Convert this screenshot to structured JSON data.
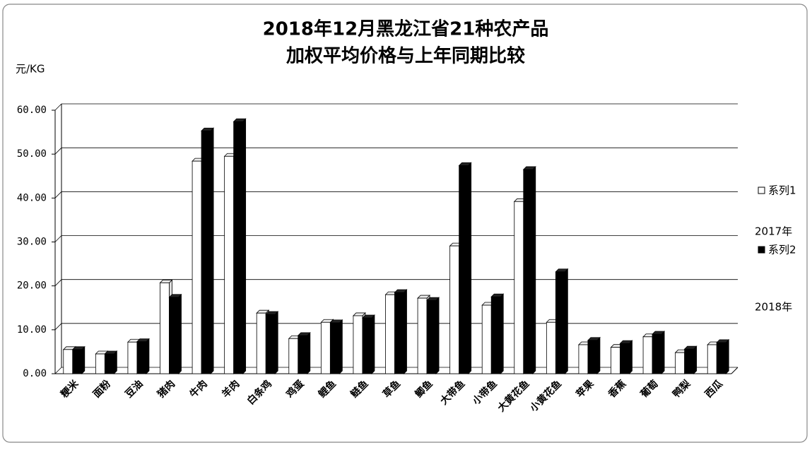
{
  "chart_data": {
    "type": "bar",
    "title": [
      "2018年12月黑龙江省21种农产品",
      "加权平均价格与上年同期比较"
    ],
    "y_label": "元/KG",
    "categories": [
      "粳米",
      "面粉",
      "豆油",
      "猪肉",
      "牛肉",
      "羊肉",
      "白条鸡",
      "鸡蛋",
      "鲤鱼",
      "鲢鱼",
      "草鱼",
      "鲫鱼",
      "大带鱼",
      "小带鱼",
      "大黄花鱼",
      "小黄花鱼",
      "苹果",
      "香蕉",
      "葡萄",
      "鸭梨",
      "西瓜"
    ],
    "series": [
      {
        "name": "系列1",
        "color": "#ffffff",
        "values": [
          5.5,
          4.5,
          7.2,
          20.7,
          48.4,
          49.5,
          13.8,
          8.0,
          11.7,
          13.2,
          18.0,
          17.2,
          29.1,
          15.6,
          39.2,
          11.7,
          6.6,
          6.0,
          8.4,
          4.8,
          6.6
        ]
      },
      {
        "name": "系列2",
        "color": "#000000",
        "values": [
          5.5,
          4.5,
          7.3,
          17.4,
          55.3,
          57.4,
          13.5,
          8.7,
          11.6,
          12.7,
          18.5,
          16.7,
          47.4,
          17.5,
          46.5,
          23.2,
          7.6,
          6.9,
          9.0,
          5.6,
          7.1
        ]
      }
    ],
    "legend_notes": [
      "2017年",
      "2018年"
    ],
    "ylim": [
      0,
      60
    ],
    "yticks": [
      {
        "value": 0,
        "label": "0.00"
      },
      {
        "value": 10,
        "label": "10.00"
      },
      {
        "value": 20,
        "label": "20.00"
      },
      {
        "value": 30,
        "label": "30.00"
      },
      {
        "value": 40,
        "label": "40.00"
      },
      {
        "value": 50,
        "label": "50.00"
      },
      {
        "value": 60,
        "label": "60.00"
      }
    ],
    "grid": true,
    "legend": "right"
  }
}
